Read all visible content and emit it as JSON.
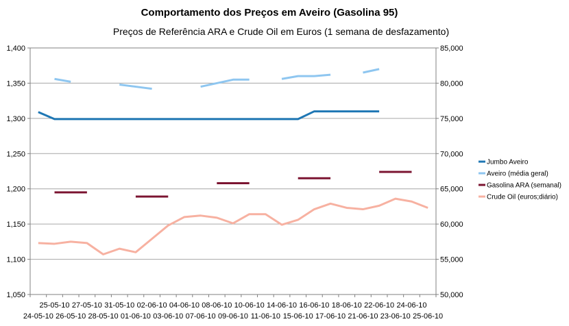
{
  "chart_data": {
    "type": "line",
    "title": "Comportamento dos Preços em Aveiro (Gasolina 95)",
    "subtitle": "Preços de Referência ARA e Crude Oil em Euros (1 semana de desfazamento)",
    "xlabel": "",
    "ylabel": "",
    "categories": [
      "24-05-10",
      "25-05-10",
      "26-05-10",
      "27-05-10",
      "28-05-10",
      "31-05-10",
      "01-06-10",
      "02-06-10",
      "03-06-10",
      "04-06-10",
      "07-06-10",
      "08-06-10",
      "09-06-10",
      "10-06-10",
      "11-06-10",
      "14-06-10",
      "15-06-10",
      "16-06-10",
      "17-06-10",
      "18-06-10",
      "21-06-10",
      "22-06-10",
      "23-06-10",
      "24-06-10",
      "25-06-10"
    ],
    "y_left": {
      "min": 1.05,
      "max": 1.4,
      "step": 0.05,
      "tick_labels": [
        "1,050",
        "1,100",
        "1,150",
        "1,200",
        "1,250",
        "1,300",
        "1,350",
        "1,400"
      ]
    },
    "y_right": {
      "min": 50000,
      "max": 85000,
      "step": 5000,
      "tick_labels": [
        "50,000",
        "55,000",
        "60,000",
        "65,000",
        "70,000",
        "75,000",
        "80,000",
        "85,000"
      ]
    },
    "grid": true,
    "legend_position": "right",
    "series": [
      {
        "name": "Jumbo Aveiro",
        "axis": "left",
        "color": "#1f77b4",
        "style": "line",
        "values": [
          1.309,
          1.299,
          1.299,
          1.299,
          1.299,
          1.299,
          1.299,
          1.299,
          1.299,
          1.299,
          1.299,
          1.299,
          1.299,
          1.299,
          1.299,
          1.299,
          1.299,
          1.31,
          1.31,
          1.31,
          1.31,
          1.31,
          null,
          null,
          null
        ]
      },
      {
        "name": "Aveiro (média geral)",
        "axis": "left",
        "color": "#8ec6f0",
        "style": "line",
        "values": [
          null,
          1.356,
          1.352,
          null,
          null,
          1.348,
          1.345,
          1.342,
          null,
          null,
          1.345,
          1.35,
          1.355,
          1.355,
          null,
          1.356,
          1.36,
          1.36,
          1.362,
          null,
          1.365,
          1.37,
          null,
          null,
          null
        ]
      },
      {
        "name": "Gasolina ARA (semanal)",
        "axis": "left",
        "color": "#7b1431",
        "style": "segments",
        "segments": [
          {
            "from": 1,
            "to": 3,
            "value": 1.195
          },
          {
            "from": 6,
            "to": 8,
            "value": 1.189
          },
          {
            "from": 11,
            "to": 13,
            "value": 1.208
          },
          {
            "from": 16,
            "to": 18,
            "value": 1.215
          },
          {
            "from": 21,
            "to": 23,
            "value": 1.224
          }
        ]
      },
      {
        "name": "Crude Oil (euros;diário)",
        "axis": "right",
        "color": "#f7b1a1",
        "style": "line",
        "values": [
          57.3,
          57.2,
          57.5,
          57.3,
          55.7,
          56.5,
          56.0,
          57.9,
          59.8,
          61.0,
          61.2,
          60.9,
          60.1,
          61.4,
          61.4,
          59.9,
          60.6,
          62.1,
          62.9,
          62.3,
          62.1,
          62.6,
          63.6,
          63.2,
          62.3
        ]
      }
    ]
  }
}
